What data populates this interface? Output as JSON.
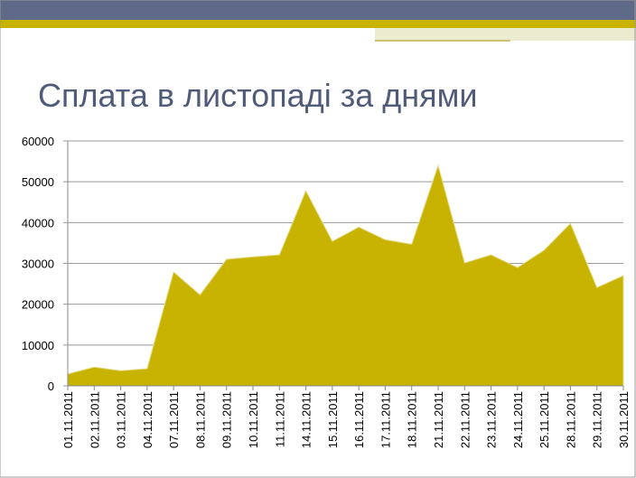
{
  "chart_data": {
    "type": "area",
    "title": "Сплата в листопаді за днями",
    "categories": [
      "01.11.2011",
      "02.11.2011",
      "03.11.2011",
      "04.11.2011",
      "07.11.2011",
      "08.11.2011",
      "09.11.2011",
      "10.11.2011",
      "11.11.2011",
      "14.11.2011",
      "15.11.2011",
      "16.11.2011",
      "17.11.2011",
      "18.11.2011",
      "21.11.2011",
      "22.11.2011",
      "23.11.2011",
      "24.11.2011",
      "25.11.2011",
      "28.11.2011",
      "29.11.2011",
      "30.11.2011"
    ],
    "values": [
      2900,
      4600,
      3700,
      4200,
      27900,
      22300,
      31000,
      31600,
      32100,
      47800,
      35400,
      38900,
      35800,
      34700,
      54000,
      30100,
      32100,
      29000,
      33200,
      39800,
      24100,
      27000
    ],
    "color": "#c8b400",
    "ylim": [
      0,
      60000
    ],
    "yticks": [
      0,
      10000,
      20000,
      30000,
      40000,
      50000,
      60000
    ],
    "grid": true
  }
}
